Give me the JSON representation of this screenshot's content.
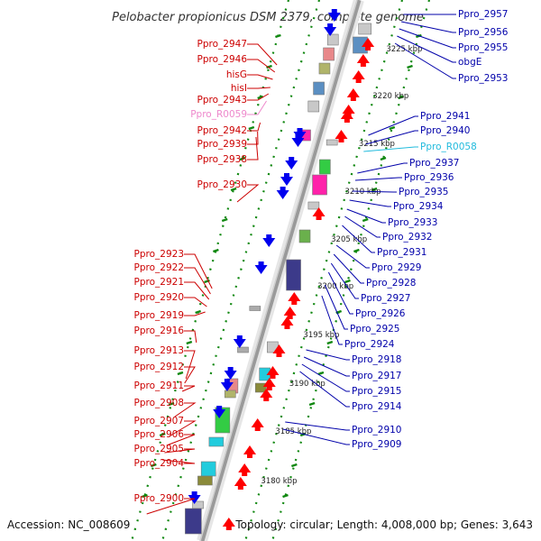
{
  "title": "Pelobacter propionicus DSM 2379, complete genome",
  "footer": {
    "accession": "Accession: NC_008609",
    "summary": "Topology: circular; Length: 4,008,000 bp; Genes: 3,643"
  },
  "colors": {
    "left_label": "#cc0000",
    "right_label": "#0000aa",
    "rna_left": "#ee88cc",
    "rna_right": "#22bbdd",
    "forward_arrow": "#ff0000",
    "reverse_arrow": "#0000ee",
    "backbone": "#999999",
    "tick": "#118811"
  },
  "scale_labels": [
    "3225 kbp",
    "3220 kbp",
    "3215 kbp",
    "3210 kbp",
    "3205 kbp",
    "3200 kbp",
    "3195 kbp",
    "3190 kbp",
    "3185 kbp",
    "3180 kbp"
  ],
  "left_genes": [
    {
      "label": "Ppro_2947",
      "type": "gene"
    },
    {
      "label": "Ppro_2946",
      "type": "gene"
    },
    {
      "label": "hisG",
      "type": "gene"
    },
    {
      "label": "hisI",
      "type": "gene"
    },
    {
      "label": "Ppro_2943",
      "type": "gene"
    },
    {
      "label": "Ppro_R0059",
      "type": "rna"
    },
    {
      "label": "Ppro_2942",
      "type": "gene"
    },
    {
      "label": "Ppro_2939",
      "type": "gene"
    },
    {
      "label": "Ppro_2938",
      "type": "gene"
    },
    {
      "label": "Ppro_2930",
      "type": "gene"
    },
    {
      "label": "Ppro_2923",
      "type": "gene"
    },
    {
      "label": "Ppro_2922",
      "type": "gene"
    },
    {
      "label": "Ppro_2921",
      "type": "gene"
    },
    {
      "label": "Ppro_2920",
      "type": "gene"
    },
    {
      "label": "Ppro_2919",
      "type": "gene"
    },
    {
      "label": "Ppro_2916",
      "type": "gene"
    },
    {
      "label": "Ppro_2913",
      "type": "gene"
    },
    {
      "label": "Ppro_2912",
      "type": "gene"
    },
    {
      "label": "Ppro_2911",
      "type": "gene"
    },
    {
      "label": "Ppro_2908",
      "type": "gene"
    },
    {
      "label": "Ppro_2907",
      "type": "gene"
    },
    {
      "label": "Ppro_2906",
      "type": "gene"
    },
    {
      "label": "Ppro_2905",
      "type": "gene"
    },
    {
      "label": "Ppro_2904",
      "type": "gene"
    },
    {
      "label": "Ppro_2900",
      "type": "gene"
    }
  ],
  "right_genes": [
    {
      "label": "Ppro_2957",
      "type": "gene"
    },
    {
      "label": "Ppro_2956",
      "type": "gene"
    },
    {
      "label": "Ppro_2955",
      "type": "gene"
    },
    {
      "label": "obgE",
      "type": "gene"
    },
    {
      "label": "Ppro_2953",
      "type": "gene"
    },
    {
      "label": "Ppro_2941",
      "type": "gene"
    },
    {
      "label": "Ppro_2940",
      "type": "gene"
    },
    {
      "label": "Ppro_R0058",
      "type": "rna"
    },
    {
      "label": "Ppro_2937",
      "type": "gene"
    },
    {
      "label": "Ppro_2936",
      "type": "gene"
    },
    {
      "label": "Ppro_2935",
      "type": "gene"
    },
    {
      "label": "Ppro_2934",
      "type": "gene"
    },
    {
      "label": "Ppro_2933",
      "type": "gene"
    },
    {
      "label": "Ppro_2932",
      "type": "gene"
    },
    {
      "label": "Ppro_2931",
      "type": "gene"
    },
    {
      "label": "Ppro_2929",
      "type": "gene"
    },
    {
      "label": "Ppro_2928",
      "type": "gene"
    },
    {
      "label": "Ppro_2927",
      "type": "gene"
    },
    {
      "label": "Ppro_2926",
      "type": "gene"
    },
    {
      "label": "Ppro_2925",
      "type": "gene"
    },
    {
      "label": "Ppro_2924",
      "type": "gene"
    },
    {
      "label": "Ppro_2918",
      "type": "gene"
    },
    {
      "label": "Ppro_2917",
      "type": "gene"
    },
    {
      "label": "Ppro_2915",
      "type": "gene"
    },
    {
      "label": "Ppro_2914",
      "type": "gene"
    },
    {
      "label": "Ppro_2910",
      "type": "gene"
    },
    {
      "label": "Ppro_2909",
      "type": "gene"
    }
  ]
}
